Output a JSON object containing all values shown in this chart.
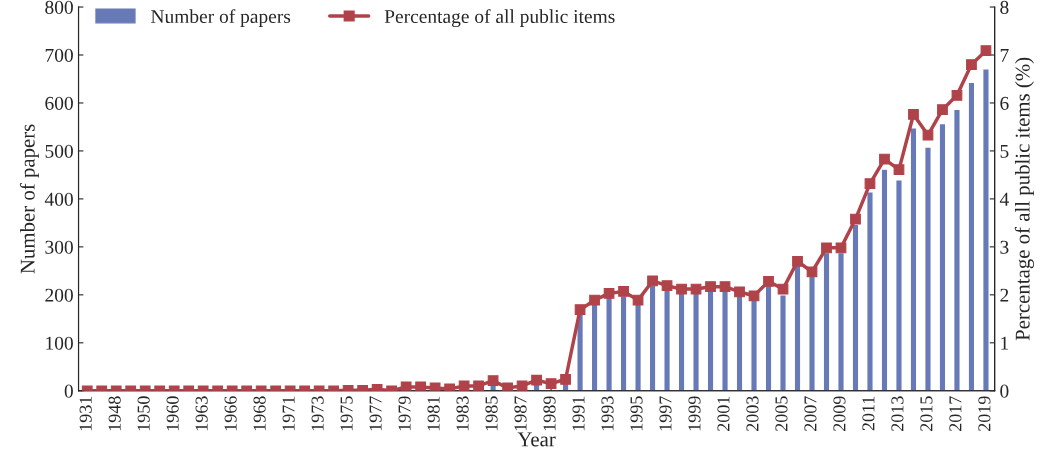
{
  "chart_data": {
    "type": "bar",
    "xlabel": "Year",
    "ylabel": "Number of papers",
    "y2label": "Percentage of all public items (%)",
    "categories": [
      "1931",
      null,
      "1948",
      null,
      "1950",
      null,
      "1960",
      null,
      "1963",
      null,
      "1966",
      null,
      "1968",
      null,
      "1971",
      null,
      "1973",
      null,
      "1975",
      null,
      "1977",
      null,
      "1979",
      null,
      "1981",
      null,
      "1983",
      null,
      "1985",
      null,
      "1987",
      null,
      "1989",
      null,
      "1991",
      null,
      "1993",
      null,
      "1995",
      null,
      "1997",
      null,
      "1999",
      null,
      "2001",
      null,
      "2003",
      null,
      "2005",
      null,
      "2007",
      null,
      "2009",
      null,
      "2011",
      null,
      "2013",
      null,
      "2015",
      null,
      "2017",
      null,
      "2019"
    ],
    "series": [
      {
        "name": "Number of papers",
        "color": "#6779b6",
        "values": [
          null,
          null,
          null,
          null,
          null,
          null,
          null,
          null,
          null,
          null,
          null,
          null,
          null,
          null,
          null,
          null,
          null,
          null,
          null,
          null,
          null,
          null,
          null,
          null,
          null,
          null,
          null,
          null,
          15,
          null,
          null,
          15,
          null,
          18,
          160,
          185,
          195,
          198,
          185,
          220,
          210,
          205,
          205,
          210,
          210,
          200,
          193,
          222,
          200,
          262,
          240,
          288,
          288,
          347,
          415,
          462,
          440,
          548,
          508,
          557,
          587,
          643,
          671
        ]
      },
      {
        "name": "Percentage of all public items",
        "type": "line",
        "axis": "y2",
        "color": "#b0434a",
        "values": [
          0,
          0,
          0,
          0,
          0,
          0,
          0,
          0,
          0,
          0,
          0,
          0,
          0,
          0,
          0,
          0,
          0,
          0,
          0.01,
          0.01,
          0.03,
          0,
          0.08,
          0.08,
          0.06,
          0.04,
          0.1,
          0.1,
          0.21,
          0.06,
          0.1,
          0.22,
          0.15,
          0.24,
          1.69,
          1.89,
          2.03,
          2.07,
          1.89,
          2.29,
          2.19,
          2.12,
          2.12,
          2.17,
          2.17,
          2.06,
          1.98,
          2.28,
          2.12,
          2.7,
          2.48,
          2.98,
          2.98,
          3.58,
          4.32,
          4.83,
          4.61,
          5.76,
          5.33,
          5.86,
          6.16,
          6.8,
          7.09
        ]
      }
    ],
    "ylim": [
      0,
      800
    ],
    "yticks": [
      0,
      100,
      200,
      300,
      400,
      500,
      600,
      700,
      800
    ],
    "y2lim": [
      0,
      8
    ],
    "y2ticks": [
      0,
      1,
      2,
      3,
      4,
      5,
      6,
      7,
      8
    ],
    "marker": "square",
    "legend": "top left",
    "grid": false
  }
}
